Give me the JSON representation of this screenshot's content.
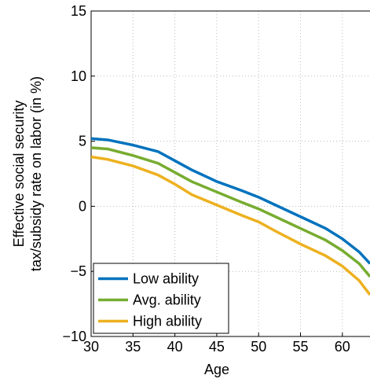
{
  "chart_data": {
    "type": "line",
    "xlabel": "Age",
    "ylabel": [
      "Effective social security",
      "tax/subsidy rate on labor (in %)"
    ],
    "x": [
      30,
      32,
      35,
      38,
      40,
      42,
      45,
      48,
      50,
      52,
      55,
      58,
      60,
      62,
      63.3
    ],
    "series": [
      {
        "name": "Low ability",
        "color": "#0072bd",
        "values": [
          5.2,
          5.1,
          4.7,
          4.2,
          3.5,
          2.8,
          1.9,
          1.2,
          0.7,
          0.1,
          -0.8,
          -1.7,
          -2.5,
          -3.5,
          -4.4
        ]
      },
      {
        "name": "Avg. ability",
        "color": "#77ac30",
        "values": [
          4.5,
          4.4,
          3.9,
          3.3,
          2.6,
          1.9,
          1.1,
          0.3,
          -0.2,
          -0.8,
          -1.7,
          -2.6,
          -3.4,
          -4.4,
          -5.4
        ]
      },
      {
        "name": "High ability",
        "color": "#edb120",
        "values": [
          3.8,
          3.6,
          3.1,
          2.4,
          1.7,
          0.9,
          0.1,
          -0.7,
          -1.2,
          -1.9,
          -2.9,
          -3.8,
          -4.6,
          -5.7,
          -6.8
        ]
      }
    ],
    "xlim": [
      30,
      63.3
    ],
    "ylim": [
      -10,
      15
    ],
    "xticks": [
      30,
      35,
      40,
      45,
      50,
      55,
      60
    ],
    "yticks": [
      {
        "value": -10,
        "label": "−10"
      },
      {
        "value": -5,
        "label": "−5"
      },
      0,
      5,
      10,
      15
    ],
    "grid": true,
    "legend": "lower left"
  }
}
